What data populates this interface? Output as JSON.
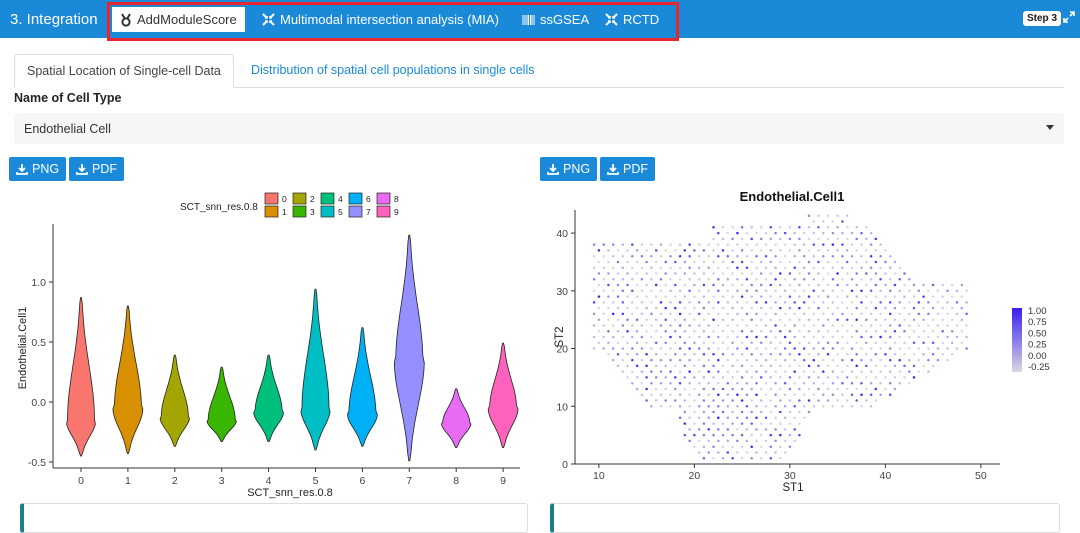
{
  "header": {
    "section_title": "3. Integration",
    "tabs": [
      {
        "label": "AddModuleScore",
        "icon": "hook-icon",
        "active": true
      },
      {
        "label": "Multimodal intersection analysis (MIA)",
        "icon": "arrows-collapse-icon",
        "active": false
      },
      {
        "label": "ssGSEA",
        "icon": "barcode-icon",
        "active": false
      },
      {
        "label": "RCTD",
        "icon": "arrows-collapse-icon",
        "active": false
      }
    ],
    "step_badge": "Step 3"
  },
  "subtabs": [
    {
      "label": "Spatial Location of Single-cell Data",
      "active": true
    },
    {
      "label": "Distribution of spatial cell populations in single cells",
      "active": false
    }
  ],
  "cell_type_field": {
    "label": "Name of Cell Type",
    "value": "Endothelial Cell"
  },
  "download_buttons": {
    "png": "PNG",
    "pdf": "PDF"
  },
  "colors": {
    "accent": "#1a8ad8",
    "highlight_border": "#e8262f"
  },
  "chart_data": [
    {
      "type": "violin",
      "title": "",
      "xlabel": "SCT_snn_res.0.8",
      "ylabel": "Endothelial.Cell1",
      "legend_title": "SCT_snn_res.0.8",
      "legend_position": "top",
      "ylim": [
        -0.55,
        1.45
      ],
      "yticks": [
        -0.5,
        0.0,
        0.5,
        1.0
      ],
      "ytick_labels": [
        "-0.5",
        "0.0",
        "0.5",
        "1.0"
      ],
      "categories": [
        "0",
        "1",
        "2",
        "3",
        "4",
        "5",
        "6",
        "7",
        "8",
        "9"
      ],
      "colors": [
        "#F8766D",
        "#D89000",
        "#A3A500",
        "#39B600",
        "#00BF7D",
        "#00BFC4",
        "#00B0F6",
        "#9590FF",
        "#E76BF3",
        "#FF62BC"
      ],
      "series": [
        {
          "category": "0",
          "min": -0.45,
          "max": 0.87,
          "mode": -0.15
        },
        {
          "category": "1",
          "min": -0.43,
          "max": 0.8,
          "mode": -0.05
        },
        {
          "category": "2",
          "min": -0.37,
          "max": 0.39,
          "mode": -0.12
        },
        {
          "category": "3",
          "min": -0.33,
          "max": 0.29,
          "mode": -0.15
        },
        {
          "category": "4",
          "min": -0.33,
          "max": 0.39,
          "mode": -0.08
        },
        {
          "category": "5",
          "min": -0.4,
          "max": 0.94,
          "mode": -0.05
        },
        {
          "category": "6",
          "min": -0.37,
          "max": 0.62,
          "mode": -0.1
        },
        {
          "category": "7",
          "min": -0.49,
          "max": 1.39,
          "mode": 0.35
        },
        {
          "category": "8",
          "min": -0.38,
          "max": 0.11,
          "mode": -0.17
        },
        {
          "category": "9",
          "min": -0.38,
          "max": 0.49,
          "mode": -0.05
        }
      ]
    },
    {
      "type": "scatter",
      "title": "Endothelial.Cell1",
      "xlabel": "ST1",
      "ylabel": "ST2",
      "xlim": [
        7.5,
        52
      ],
      "ylim": [
        0,
        44
      ],
      "xticks": [
        10,
        20,
        30,
        40,
        50
      ],
      "yticks": [
        0,
        10,
        20,
        30,
        40
      ],
      "colorbar_ticks": [
        "1.00",
        "0.75",
        "0.50",
        "0.25",
        "0.00",
        "-0.25"
      ],
      "colorbar_range": [
        -0.25,
        1.0
      ],
      "low_color": "#d8d8e2",
      "high_color": "#3b1ff0",
      "grid": false
    }
  ]
}
